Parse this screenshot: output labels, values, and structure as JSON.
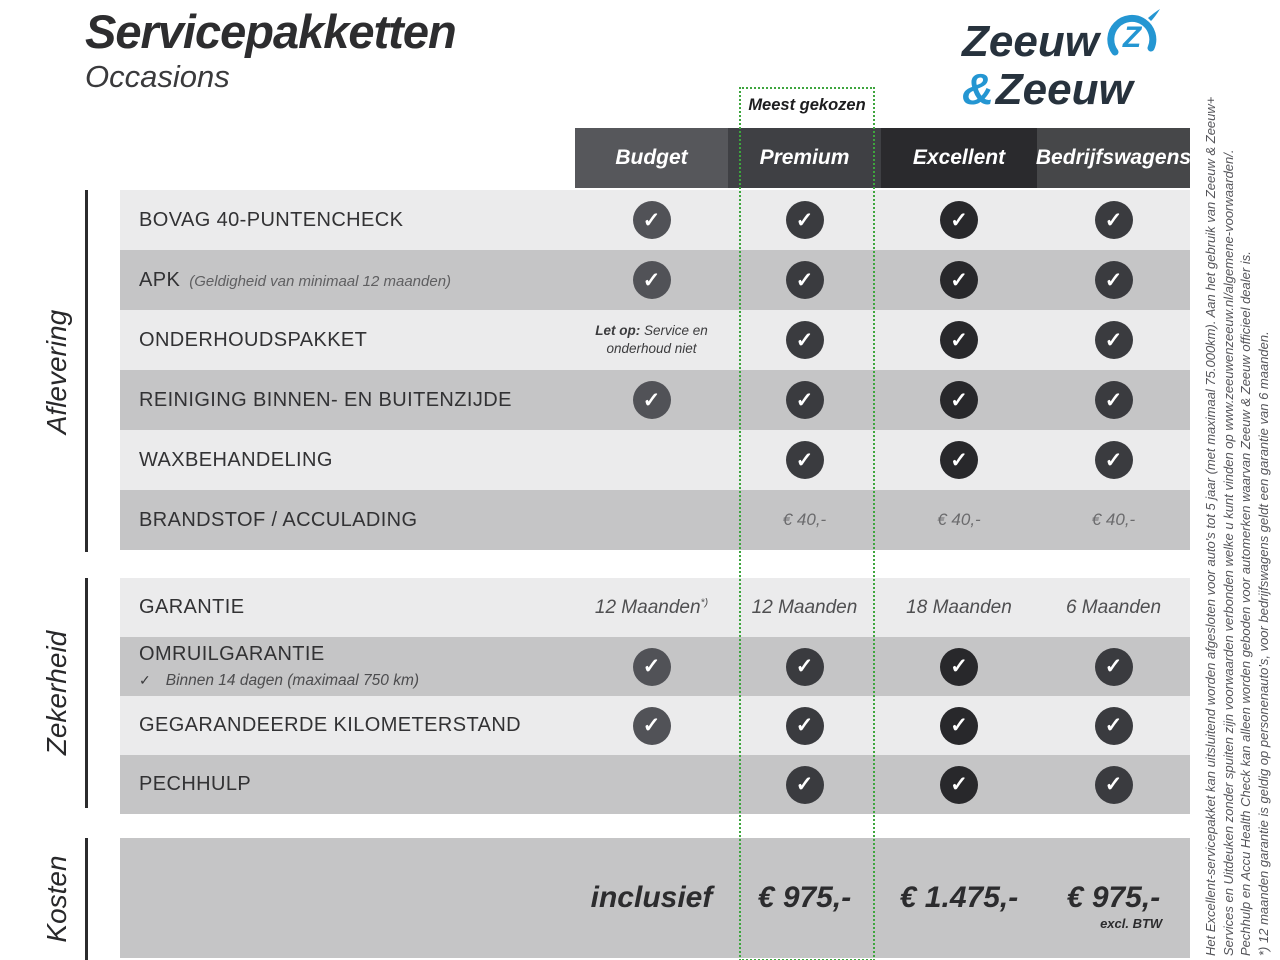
{
  "page": {
    "title": "Servicepakketten",
    "subtitle": "Occasions"
  },
  "logo": {
    "word1": "Zeeuw",
    "ampersand": "&",
    "word2": "Zeeuw",
    "dark_color": "#27323d",
    "blue_color": "#2496d2",
    "icon": "z-swoosh-icon"
  },
  "most_chosen": {
    "label": "Meest gekozen",
    "border_color": "#3ea53e"
  },
  "check_glyph": "✓",
  "columns": [
    {
      "label": "Budget",
      "header_color": "#56575b",
      "check_color": "#515257"
    },
    {
      "label": "Premium",
      "header_color": "#3f4044",
      "check_color": "#3a3b3f"
    },
    {
      "label": "Excellent",
      "header_color": "#2a2a2d",
      "check_color": "#28282b"
    },
    {
      "label": "Bedrijfswagens",
      "header_color": "#464749",
      "check_color": "#3a3b3f"
    }
  ],
  "sections": [
    {
      "label": "Aflevering",
      "rows": [
        {
          "label": "BOVAG 40-PUNTENCHECK",
          "cells": [
            {
              "t": "check"
            },
            {
              "t": "check"
            },
            {
              "t": "check"
            },
            {
              "t": "check"
            }
          ]
        },
        {
          "label": "APK",
          "note_inline": "(Geldigheid van minimaal 12 maanden)",
          "cells": [
            {
              "t": "check"
            },
            {
              "t": "check"
            },
            {
              "t": "check"
            },
            {
              "t": "check"
            }
          ]
        },
        {
          "label": "ONDERHOUDSPAKKET",
          "cells": [
            {
              "t": "warn",
              "bold": "Let op:",
              "text": " Service en onderhoud niet"
            },
            {
              "t": "check"
            },
            {
              "t": "check"
            },
            {
              "t": "check"
            }
          ]
        },
        {
          "label": "REINIGING BINNEN- EN BUITENZIJDE",
          "cells": [
            {
              "t": "check"
            },
            {
              "t": "check"
            },
            {
              "t": "check"
            },
            {
              "t": "check"
            }
          ]
        },
        {
          "label": "WAXBEHANDELING",
          "cells": [
            {
              "t": "empty"
            },
            {
              "t": "check"
            },
            {
              "t": "check"
            },
            {
              "t": "check"
            }
          ]
        },
        {
          "label": "BRANDSTOF / ACCULADING",
          "cells": [
            {
              "t": "empty"
            },
            {
              "t": "text",
              "value": "€ 40,-",
              "muted": true
            },
            {
              "t": "text",
              "value": "€ 40,-",
              "muted": true
            },
            {
              "t": "text",
              "value": "€ 40,-",
              "muted": true
            }
          ]
        }
      ]
    },
    {
      "label": "Zekerheid",
      "rows": [
        {
          "label": "GARANTIE",
          "cells": [
            {
              "t": "text",
              "value": "12 Maanden",
              "sup": "*)"
            },
            {
              "t": "text",
              "value": "12 Maanden"
            },
            {
              "t": "text",
              "value": "18 Maanden"
            },
            {
              "t": "text",
              "value": "6 Maanden"
            }
          ]
        },
        {
          "label": "OMRUILGARANTIE",
          "note_below": "Binnen 14 dagen (maximaal 750 km)",
          "cells": [
            {
              "t": "check"
            },
            {
              "t": "check"
            },
            {
              "t": "check"
            },
            {
              "t": "check"
            }
          ]
        },
        {
          "label": "GEGARANDEERDE KILOMETERSTAND",
          "cells": [
            {
              "t": "check"
            },
            {
              "t": "check"
            },
            {
              "t": "check"
            },
            {
              "t": "check"
            }
          ]
        },
        {
          "label": "PECHHULP",
          "cells": [
            {
              "t": "empty"
            },
            {
              "t": "check"
            },
            {
              "t": "check"
            },
            {
              "t": "check"
            }
          ]
        }
      ]
    },
    {
      "label": "Kosten",
      "rows": [
        {
          "label": "",
          "cells": [
            {
              "t": "price",
              "value": "inclusief"
            },
            {
              "t": "price",
              "value": "€ 975,-"
            },
            {
              "t": "price",
              "value": "€ 1.475,-"
            },
            {
              "t": "price",
              "value": "€ 975,-",
              "note": "excl. BTW"
            }
          ]
        }
      ]
    }
  ],
  "footnotes": [
    "Het Excellent-servicepakket kan uitsluitend worden afgesloten voor auto's tot 5 jaar (met maximaal 75.000km). Aan het gebruik van Zeeuw & Zeeuw+",
    "Services en Uitdeuken zonder spuiten zijn voorwaarden verbonden welke u kunt vinden op www.zeeuwenzeeuw.nl/algemene-voorwaarden/.",
    "Pechhulp en Accu Health Check kan alleen worden geboden voor automerken waarvan Zeeuw & Zeeuw officieel dealer is.",
    "*) 12 maanden garantie is geldig op personenauto's, voor bedrijfswagens geldt een garantie van 6 maanden."
  ]
}
